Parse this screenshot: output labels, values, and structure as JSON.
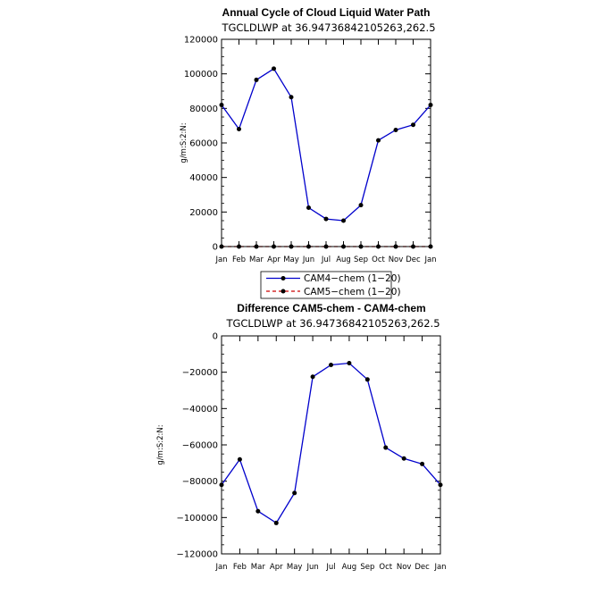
{
  "chart_data": [
    {
      "type": "line",
      "title": "Annual Cycle of Cloud Liquid Water Path",
      "subtitle": "TGCLDLWP  at  36.94736842105263,262.5",
      "ylabel": "g/m:S:2:N:",
      "ylim": [
        0,
        120000
      ],
      "yticks": [
        "0",
        "20000",
        "40000",
        "60000",
        "80000",
        "100000",
        "120000"
      ],
      "categories": [
        "Jan",
        "Feb",
        "Mar",
        "Apr",
        "May",
        "Jun",
        "Jul",
        "Aug",
        "Sep",
        "Oct",
        "Nov",
        "Dec",
        "Jan"
      ],
      "series": [
        {
          "name": "CAM4−chem (1−20)",
          "color": "#0000cc",
          "dash": "solid",
          "values": [
            82000,
            68000,
            96500,
            103000,
            86500,
            22500,
            16000,
            15000,
            24000,
            61500,
            67500,
            70500,
            82000
          ]
        },
        {
          "name": "CAM5−chem (1−20)",
          "color": "#cc0000",
          "dash": "dashed",
          "values": [
            0,
            0,
            0,
            0,
            0,
            0,
            0,
            0,
            0,
            0,
            0,
            0,
            0
          ]
        }
      ],
      "legend": {
        "position": "bottom-center",
        "entries": [
          "CAM4−chem (1−20)",
          "CAM5−chem (1−20)"
        ]
      }
    },
    {
      "type": "line",
      "title": "Difference CAM5-chem - CAM4-chem",
      "subtitle": "TGCLDLWP  at  36.94736842105263,262.5",
      "ylabel": "g/m:S:2:N:",
      "ylim": [
        -120000,
        0
      ],
      "yticks": [
        "−120000",
        "−100000",
        "−80000",
        "−60000",
        "−40000",
        "−20000",
        "0"
      ],
      "categories": [
        "Jan",
        "Feb",
        "Mar",
        "Apr",
        "May",
        "Jun",
        "Jul",
        "Aug",
        "Sep",
        "Oct",
        "Nov",
        "Dec",
        "Jan"
      ],
      "series": [
        {
          "name": "Difference",
          "color": "#0000cc",
          "dash": "solid",
          "values": [
            -82000,
            -68000,
            -96500,
            -103000,
            -86500,
            -22500,
            -16000,
            -15000,
            -24000,
            -61500,
            -67500,
            -70500,
            -82000
          ]
        }
      ]
    }
  ]
}
